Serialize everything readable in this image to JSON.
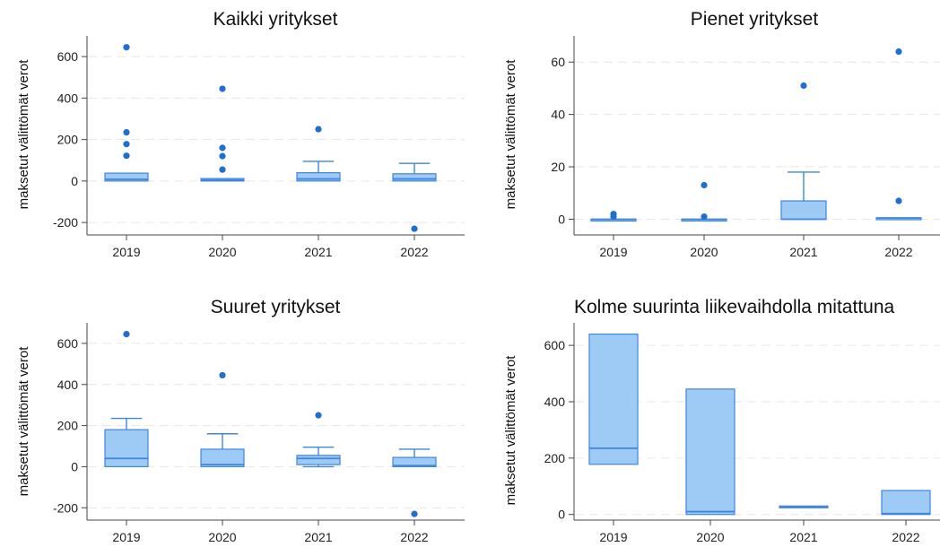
{
  "colors": {
    "box_fill": "#9ecbf5",
    "box_edge": "#3f86dc",
    "median": "#3f86dc",
    "outlier": "#1f6fd0",
    "axis": "#444444",
    "grid": "#e6e6e6"
  },
  "chart_data": [
    {
      "type": "box",
      "title": "Kaikki yritykset",
      "ylabel": "maksetut välittömät verot",
      "ylim": [
        -260,
        700
      ],
      "yticks": [
        -200,
        0,
        200,
        400,
        600
      ],
      "ytick_labels": [
        "-200",
        "0",
        "200",
        "400",
        "600"
      ],
      "grid": "horizontal dashed",
      "categories": [
        "2019",
        "2020",
        "2021",
        "2022"
      ],
      "boxes": [
        {
          "q1": 0,
          "median": 8,
          "q3": 38,
          "whisker_low": 0,
          "whisker_high": 38,
          "outliers": [
            645,
            235,
            178,
            122
          ]
        },
        {
          "q1": 0,
          "median": 5,
          "q3": 12,
          "whisker_low": 0,
          "whisker_high": 12,
          "outliers": [
            445,
            160,
            120,
            55
          ]
        },
        {
          "q1": 0,
          "median": 10,
          "q3": 40,
          "whisker_low": 0,
          "whisker_high": 95,
          "outliers": [
            250
          ]
        },
        {
          "q1": 0,
          "median": 10,
          "q3": 35,
          "whisker_low": 0,
          "whisker_high": 85,
          "outliers": [
            -230
          ]
        }
      ]
    },
    {
      "type": "box",
      "title": "Pienet yritykset",
      "ylabel": "maksetut välittömät verot",
      "ylim": [
        -6,
        70
      ],
      "yticks": [
        0,
        20,
        40,
        60
      ],
      "ytick_labels": [
        "0",
        "20",
        "40",
        "60"
      ],
      "grid": "horizontal dashed",
      "categories": [
        "2019",
        "2020",
        "2021",
        "2022"
      ],
      "boxes": [
        {
          "q1": 0,
          "median": 0,
          "q3": 0,
          "whisker_low": 0,
          "whisker_high": 0,
          "outliers": [
            2,
            1
          ]
        },
        {
          "q1": 0,
          "median": 0,
          "q3": 0,
          "whisker_low": 0,
          "whisker_high": 0,
          "outliers": [
            13,
            1
          ]
        },
        {
          "q1": 0,
          "median": 0,
          "q3": 7,
          "whisker_low": 0,
          "whisker_high": 18,
          "outliers": [
            51
          ]
        },
        {
          "q1": 0,
          "median": 0.5,
          "q3": 0.5,
          "whisker_low": 0,
          "whisker_high": 0.5,
          "outliers": [
            64,
            7
          ]
        }
      ]
    },
    {
      "type": "box",
      "title": "Suuret yritykset",
      "ylabel": "maksetut välittömät verot",
      "ylim": [
        -260,
        700
      ],
      "yticks": [
        -200,
        0,
        200,
        400,
        600
      ],
      "ytick_labels": [
        "-200",
        "0",
        "200",
        "400",
        "600"
      ],
      "grid": "horizontal dashed",
      "categories": [
        "2019",
        "2020",
        "2021",
        "2022"
      ],
      "boxes": [
        {
          "q1": 0,
          "median": 40,
          "q3": 180,
          "whisker_low": 0,
          "whisker_high": 235,
          "outliers": [
            645
          ]
        },
        {
          "q1": 0,
          "median": 10,
          "q3": 85,
          "whisker_low": 0,
          "whisker_high": 160,
          "outliers": [
            445
          ]
        },
        {
          "q1": 10,
          "median": 40,
          "q3": 55,
          "whisker_low": 0,
          "whisker_high": 95,
          "outliers": [
            250
          ]
        },
        {
          "q1": 0,
          "median": 5,
          "q3": 45,
          "whisker_low": 0,
          "whisker_high": 85,
          "outliers": [
            -230
          ]
        }
      ]
    },
    {
      "type": "box",
      "title": "Kolme suurinta liikevaihdolla mitattuna",
      "ylabel": "maksetut välittömät verot",
      "ylim": [
        -20,
        680
      ],
      "yticks": [
        0,
        200,
        400,
        600
      ],
      "ytick_labels": [
        "0",
        "200",
        "400",
        "600"
      ],
      "grid": "horizontal dashed",
      "categories": [
        "2019",
        "2020",
        "2021",
        "2022"
      ],
      "boxes": [
        {
          "q1": 178,
          "median": 235,
          "q3": 640,
          "whisker_low": 178,
          "whisker_high": 640,
          "outliers": []
        },
        {
          "q1": 0,
          "median": 10,
          "q3": 445,
          "whisker_low": 0,
          "whisker_high": 445,
          "outliers": []
        },
        {
          "q1": 25,
          "median": 28,
          "q3": 30,
          "whisker_low": 25,
          "whisker_high": 30,
          "outliers": []
        },
        {
          "q1": 0,
          "median": 3,
          "q3": 85,
          "whisker_low": 0,
          "whisker_high": 85,
          "outliers": []
        }
      ]
    }
  ]
}
